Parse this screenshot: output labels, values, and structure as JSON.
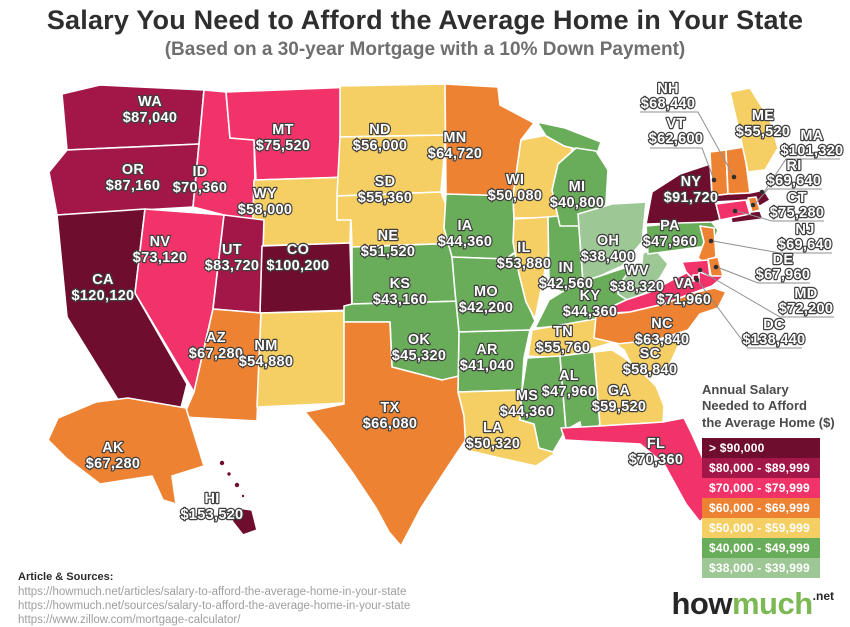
{
  "header": {
    "title": "Salary You Need to Afford the Average Home in Your State",
    "subtitle": "(Based on a 30-year Mortgage with a 10% Down Payment)"
  },
  "legend": {
    "title_lines": [
      "Annual Salary",
      "Needed to Afford",
      "the Average Home ($)"
    ],
    "items": [
      {
        "label": "> $90,000",
        "color": "#6f0d2e"
      },
      {
        "label": "$80,000 - $89,999",
        "color": "#a21747"
      },
      {
        "label": "$70,000 - $79,999",
        "color": "#f1336a"
      },
      {
        "label": "$60,000 - $69,999",
        "color": "#ee8233"
      },
      {
        "label": "$50,000 - $59,999",
        "color": "#f5cf63"
      },
      {
        "label": "$40,000 - $49,999",
        "color": "#69ad5a"
      },
      {
        "label": "$38,000 - $39,999",
        "color": "#9dc795"
      }
    ]
  },
  "footer": {
    "sources_label": "Article & Sources:",
    "sources": [
      "https://howmuch.net/articles/salary-to-afford-the-average-home-in-your-state",
      "https://howmuch.net/sources/salary-to-afford-the-average-home-in-your-state",
      "https://www.zillow.com/mortgage-calculator/"
    ]
  },
  "logo": {
    "how": "how",
    "much": "much",
    "net": ".net",
    "how_color": "#262626",
    "much_color": "#7cb854"
  },
  "chart_data": {
    "type": "choropleth",
    "title": "Salary You Need to Afford the Average Home in Your State",
    "subtitle": "Based on a 30-year Mortgage with a 10% Down Payment",
    "unit": "USD annual salary",
    "legend_title": "Annual Salary Needed to Afford the Average Home ($)",
    "categories": [
      {
        "range": "> $90,000",
        "color": "#6f0d2e"
      },
      {
        "range": "$80,000 - $89,999",
        "color": "#a21747"
      },
      {
        "range": "$70,000 - $79,999",
        "color": "#f1336a"
      },
      {
        "range": "$60,000 - $69,999",
        "color": "#ee8233"
      },
      {
        "range": "$50,000 - $59,999",
        "color": "#f5cf63"
      },
      {
        "range": "$40,000 - $49,999",
        "color": "#69ad5a"
      },
      {
        "range": "$38,000 - $39,999",
        "color": "#9dc795"
      }
    ],
    "states": [
      {
        "abbr": "WA",
        "salary": 87040,
        "label": "$87,040",
        "category": 1
      },
      {
        "abbr": "OR",
        "salary": 87160,
        "label": "$87,160",
        "category": 1
      },
      {
        "abbr": "CA",
        "salary": 120120,
        "label": "$120,120",
        "category": 0
      },
      {
        "abbr": "NV",
        "salary": 73120,
        "label": "$73,120",
        "category": 2
      },
      {
        "abbr": "ID",
        "salary": 70360,
        "label": "$70,360",
        "category": 2
      },
      {
        "abbr": "MT",
        "salary": 75520,
        "label": "$75,520",
        "category": 2
      },
      {
        "abbr": "WY",
        "salary": 58000,
        "label": "$58,000",
        "category": 4
      },
      {
        "abbr": "UT",
        "salary": 83720,
        "label": "$83,720",
        "category": 1
      },
      {
        "abbr": "CO",
        "salary": 100200,
        "label": "$100,200",
        "category": 0
      },
      {
        "abbr": "AZ",
        "salary": 67280,
        "label": "$67,280",
        "category": 3
      },
      {
        "abbr": "NM",
        "salary": 54880,
        "label": "$54,880",
        "category": 4
      },
      {
        "abbr": "ND",
        "salary": 56000,
        "label": "$56,000",
        "category": 4
      },
      {
        "abbr": "SD",
        "salary": 55360,
        "label": "$55,360",
        "category": 4
      },
      {
        "abbr": "NE",
        "salary": 51520,
        "label": "$51,520",
        "category": 4
      },
      {
        "abbr": "KS",
        "salary": 43160,
        "label": "$43,160",
        "category": 5
      },
      {
        "abbr": "OK",
        "salary": 45320,
        "label": "$45,320",
        "category": 5
      },
      {
        "abbr": "TX",
        "salary": 66080,
        "label": "$66,080",
        "category": 3
      },
      {
        "abbr": "MN",
        "salary": 64720,
        "label": "$64,720",
        "category": 3
      },
      {
        "abbr": "IA",
        "salary": 44360,
        "label": "$44,360",
        "category": 5
      },
      {
        "abbr": "MO",
        "salary": 42200,
        "label": "$42,200",
        "category": 5
      },
      {
        "abbr": "AR",
        "salary": 41040,
        "label": "$41,040",
        "category": 5
      },
      {
        "abbr": "LA",
        "salary": 50320,
        "label": "$50,320",
        "category": 4
      },
      {
        "abbr": "WI",
        "salary": 50080,
        "label": "$50,080",
        "category": 4
      },
      {
        "abbr": "IL",
        "salary": 53880,
        "label": "$53,880",
        "category": 4
      },
      {
        "abbr": "MI",
        "salary": 40800,
        "label": "$40,800",
        "category": 5
      },
      {
        "abbr": "IN",
        "salary": 42560,
        "label": "$42,560",
        "category": 5
      },
      {
        "abbr": "OH",
        "salary": 38400,
        "label": "$38,400",
        "category": 6
      },
      {
        "abbr": "KY",
        "salary": 44360,
        "label": "$44,360",
        "category": 5
      },
      {
        "abbr": "TN",
        "salary": 55760,
        "label": "$55,760",
        "category": 4
      },
      {
        "abbr": "MS",
        "salary": 44360,
        "label": "$44,360",
        "category": 5
      },
      {
        "abbr": "AL",
        "salary": 47960,
        "label": "$47,960",
        "category": 5
      },
      {
        "abbr": "GA",
        "salary": 59520,
        "label": "$59,520",
        "category": 4
      },
      {
        "abbr": "FL",
        "salary": 70360,
        "label": "$70,360",
        "category": 2
      },
      {
        "abbr": "SC",
        "salary": 58840,
        "label": "$58,840",
        "category": 4
      },
      {
        "abbr": "NC",
        "salary": 63840,
        "label": "$63,840",
        "category": 3
      },
      {
        "abbr": "VA",
        "salary": 71960,
        "label": "$71,960",
        "category": 2
      },
      {
        "abbr": "WV",
        "salary": 38320,
        "label": "$38,320",
        "category": 6
      },
      {
        "abbr": "PA",
        "salary": 47960,
        "label": "$47,960",
        "category": 5
      },
      {
        "abbr": "NY",
        "salary": 91720,
        "label": "$91,720",
        "category": 0
      },
      {
        "abbr": "NJ",
        "salary": 69640,
        "label": "$69,640",
        "category": 3
      },
      {
        "abbr": "CT",
        "salary": 75280,
        "label": "$75,280",
        "category": 2
      },
      {
        "abbr": "RI",
        "salary": 69640,
        "label": "$69,640",
        "category": 3
      },
      {
        "abbr": "MA",
        "salary": 101320,
        "label": "$101,320",
        "category": 0
      },
      {
        "abbr": "VT",
        "salary": 62600,
        "label": "$62,600",
        "category": 3
      },
      {
        "abbr": "NH",
        "salary": 68440,
        "label": "$68,440",
        "category": 3
      },
      {
        "abbr": "ME",
        "salary": 55520,
        "label": "$55,520",
        "category": 4
      },
      {
        "abbr": "MD",
        "salary": 72200,
        "label": "$72,200",
        "category": 2
      },
      {
        "abbr": "DE",
        "salary": 67960,
        "label": "$67,960",
        "category": 3
      },
      {
        "abbr": "DC",
        "salary": 138440,
        "label": "$138,440",
        "category": 0
      },
      {
        "abbr": "AK",
        "salary": 67280,
        "label": "$67,280",
        "category": 3
      },
      {
        "abbr": "HI",
        "salary": 153520,
        "label": "$153,520",
        "category": 0
      }
    ]
  }
}
